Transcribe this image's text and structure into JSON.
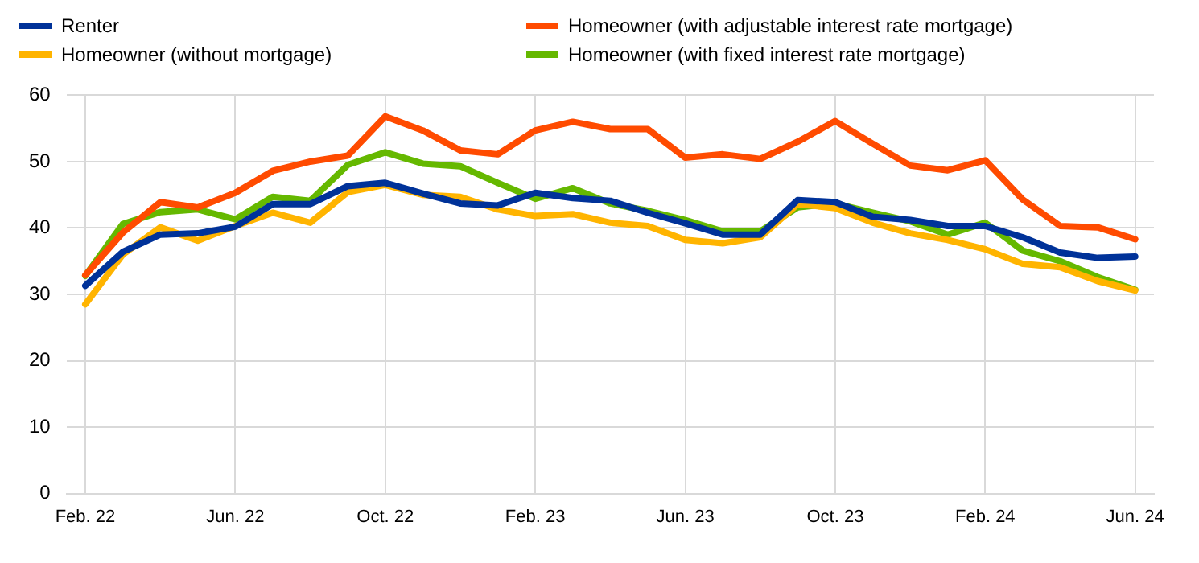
{
  "chart_data": {
    "type": "line",
    "categories": [
      "Feb. 22",
      null,
      null,
      null,
      "Jun. 22",
      null,
      null,
      null,
      "Oct. 22",
      null,
      null,
      null,
      "Feb. 23",
      null,
      null,
      null,
      "Jun. 23",
      null,
      null,
      null,
      "Oct. 23",
      null,
      null,
      null,
      "Feb. 24",
      null,
      null,
      null,
      "Jun. 24"
    ],
    "series": [
      {
        "name": "Renter",
        "color": "#003299",
        "values": [
          31.3,
          36.4,
          39,
          39.2,
          40.2,
          43.6,
          43.6,
          46.3,
          46.8,
          45.2,
          43.7,
          43.4,
          45.3,
          44.5,
          44.1,
          42.3,
          40.7,
          39,
          39,
          44.2,
          43.9,
          41.7,
          41.2,
          40.3,
          40.3,
          38.6,
          36.3,
          35.5,
          35.7
        ]
      },
      {
        "name": "Homeowner (with adjustable interest rate mortgage)",
        "color": "#ff4b00",
        "values": [
          32.9,
          39.3,
          43.9,
          43.1,
          45.3,
          48.6,
          50,
          50.9,
          56.8,
          54.7,
          51.7,
          51.1,
          54.7,
          56,
          54.9,
          54.9,
          50.6,
          51.1,
          50.4,
          53,
          56.1,
          52.7,
          49.4,
          48.7,
          50.2,
          44.3,
          40.3,
          40.1,
          38.3
        ]
      },
      {
        "name": "Homeowner (without mortgage)",
        "color": "#ffb400",
        "values": [
          28.5,
          36,
          40.1,
          38.1,
          40.3,
          42.3,
          40.8,
          45.4,
          46.5,
          45,
          44.7,
          42.8,
          41.8,
          42.1,
          40.8,
          40.3,
          38.2,
          37.7,
          38.6,
          43.6,
          43,
          40.8,
          39.2,
          38.2,
          36.8,
          34.6,
          34.1,
          32,
          30.6
        ]
      },
      {
        "name": "Homeowner (with fixed interest rate mortgage)",
        "color": "#65b800",
        "values": [
          32.8,
          40.6,
          42.4,
          42.8,
          41.3,
          44.7,
          44.1,
          49.5,
          51.4,
          49.7,
          49.3,
          46.8,
          44.4,
          46,
          43.7,
          42.6,
          41.2,
          39.5,
          39.5,
          43.1,
          43.7,
          42.3,
          41,
          39,
          40.8,
          36.6,
          35,
          32.6,
          30.7
        ]
      }
    ],
    "ylim": [
      0,
      60
    ],
    "yticks": [
      0,
      10,
      20,
      30,
      40,
      50,
      60
    ],
    "grid": true,
    "legend": "top",
    "marker": "none",
    "line_style": "solid"
  }
}
